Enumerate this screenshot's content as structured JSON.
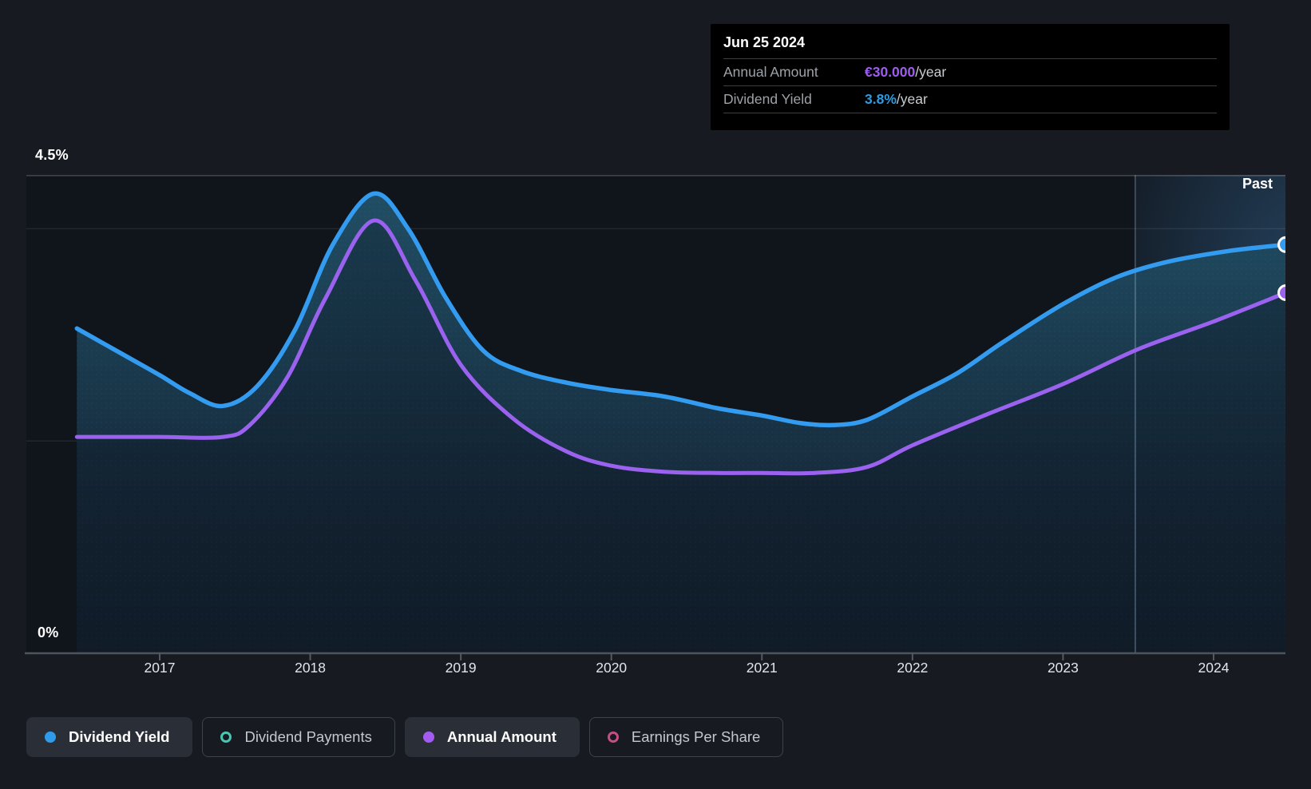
{
  "tooltip": {
    "date": "Jun 25 2024",
    "rows": [
      {
        "label": "Annual Amount",
        "value": "€30.000",
        "suffix": "/year",
        "color": "#9D5CF0"
      },
      {
        "label": "Dividend Yield",
        "value": "3.8%",
        "suffix": "/year",
        "color": "#2E9BE0"
      }
    ]
  },
  "y_axis": {
    "top_label": "4.5%",
    "bottom_label": "0%"
  },
  "x_axis": {
    "years": [
      2017,
      2018,
      2019,
      2020,
      2021,
      2022,
      2023,
      2024
    ]
  },
  "past_label": "Past",
  "legend": [
    {
      "label": "Dividend Yield",
      "marker": "filled",
      "color": "#2F9BEA",
      "active": true
    },
    {
      "label": "Dividend Payments",
      "marker": "hollow",
      "color": "#49C5B1",
      "active": false
    },
    {
      "label": "Annual Amount",
      "marker": "filled",
      "color": "#A35CEF",
      "active": true
    },
    {
      "label": "Earnings Per Share",
      "marker": "hollow",
      "color": "#C74D87",
      "active": false
    }
  ],
  "chart_data": {
    "type": "line",
    "title": "Dividend yield and annual dividend amount over time",
    "x_range": [
      2016.45,
      2024.48
    ],
    "past_divider_year": 2023.48,
    "y_axis": {
      "label": "Dividend Yield",
      "unit": "%",
      "min": 0,
      "max": 4.5,
      "gridlines_pct": [
        4.5,
        4.0,
        2.0,
        0
      ],
      "labeled_gridlines": [
        "4.5%",
        "0%"
      ]
    },
    "legend_position": "bottom",
    "series": [
      {
        "name": "Dividend Yield",
        "unit": "%",
        "color": "#339CF0",
        "end_value_label": "3.8%",
        "points": [
          [
            2016.45,
            3.06
          ],
          [
            2016.75,
            2.82
          ],
          [
            2017.0,
            2.62
          ],
          [
            2017.2,
            2.45
          ],
          [
            2017.42,
            2.33
          ],
          [
            2017.65,
            2.52
          ],
          [
            2017.9,
            3.05
          ],
          [
            2018.15,
            3.85
          ],
          [
            2018.42,
            4.33
          ],
          [
            2018.65,
            4.0
          ],
          [
            2018.9,
            3.35
          ],
          [
            2019.15,
            2.85
          ],
          [
            2019.4,
            2.66
          ],
          [
            2019.7,
            2.55
          ],
          [
            2020.0,
            2.48
          ],
          [
            2020.35,
            2.42
          ],
          [
            2020.7,
            2.31
          ],
          [
            2021.0,
            2.24
          ],
          [
            2021.25,
            2.17
          ],
          [
            2021.47,
            2.15
          ],
          [
            2021.7,
            2.2
          ],
          [
            2022.0,
            2.42
          ],
          [
            2022.3,
            2.64
          ],
          [
            2022.6,
            2.93
          ],
          [
            2023.0,
            3.29
          ],
          [
            2023.35,
            3.54
          ],
          [
            2023.7,
            3.69
          ],
          [
            2024.1,
            3.79
          ],
          [
            2024.48,
            3.85
          ]
        ]
      },
      {
        "name": "Annual Amount",
        "unit": "EUR thousands per year",
        "color": "#9A62EF",
        "end_value_label": "€30.000",
        "points": [
          [
            2016.45,
            18
          ],
          [
            2017.0,
            18
          ],
          [
            2017.42,
            18
          ],
          [
            2017.6,
            19
          ],
          [
            2017.85,
            23
          ],
          [
            2018.1,
            29.5
          ],
          [
            2018.42,
            36
          ],
          [
            2018.7,
            31
          ],
          [
            2019.0,
            24
          ],
          [
            2019.35,
            19.5
          ],
          [
            2019.7,
            16.8
          ],
          [
            2020.0,
            15.6
          ],
          [
            2020.35,
            15.1
          ],
          [
            2020.7,
            15.0
          ],
          [
            2021.0,
            15.0
          ],
          [
            2021.35,
            15.0
          ],
          [
            2021.7,
            15.5
          ],
          [
            2022.0,
            17.3
          ],
          [
            2022.5,
            19.9
          ],
          [
            2023.0,
            22.4
          ],
          [
            2023.5,
            25.3
          ],
          [
            2024.0,
            27.6
          ],
          [
            2024.48,
            30
          ]
        ]
      }
    ]
  }
}
